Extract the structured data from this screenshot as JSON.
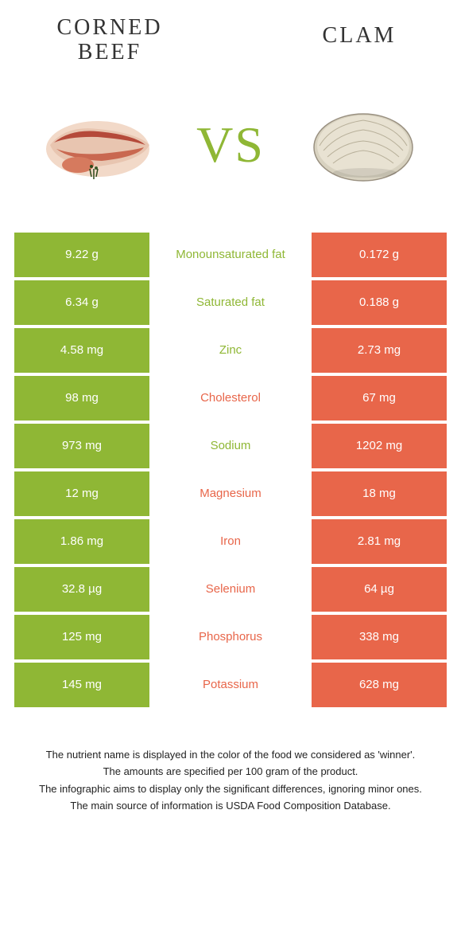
{
  "colors": {
    "green": "#8fb735",
    "orange": "#e8664a",
    "white": "#ffffff",
    "text_dark": "#333333"
  },
  "header": {
    "left_title": "CORNED BEEF",
    "right_title": "CLAM",
    "vs": "VS"
  },
  "rows": [
    {
      "left": "9.22 g",
      "label": "Monounsaturated fat",
      "right": "0.172 g",
      "winner": "left"
    },
    {
      "left": "6.34 g",
      "label": "Saturated fat",
      "right": "0.188 g",
      "winner": "left"
    },
    {
      "left": "4.58 mg",
      "label": "Zinc",
      "right": "2.73 mg",
      "winner": "left"
    },
    {
      "left": "98 mg",
      "label": "Cholesterol",
      "right": "67 mg",
      "winner": "right"
    },
    {
      "left": "973 mg",
      "label": "Sodium",
      "right": "1202 mg",
      "winner": "left"
    },
    {
      "left": "12 mg",
      "label": "Magnesium",
      "right": "18 mg",
      "winner": "right"
    },
    {
      "left": "1.86 mg",
      "label": "Iron",
      "right": "2.81 mg",
      "winner": "right"
    },
    {
      "left": "32.8 µg",
      "label": "Selenium",
      "right": "64 µg",
      "winner": "right"
    },
    {
      "left": "125 mg",
      "label": "Phosphorus",
      "right": "338 mg",
      "winner": "right"
    },
    {
      "left": "145 mg",
      "label": "Potassium",
      "right": "628 mg",
      "winner": "right"
    }
  ],
  "footer": {
    "line1": "The nutrient name is displayed in the color of the food we considered as 'winner'.",
    "line2": "The amounts are specified per 100 gram of the product.",
    "line3": "The infographic aims to display only the significant differences, ignoring minor ones.",
    "line4": "The main source of information is USDA Food Composition Database."
  }
}
